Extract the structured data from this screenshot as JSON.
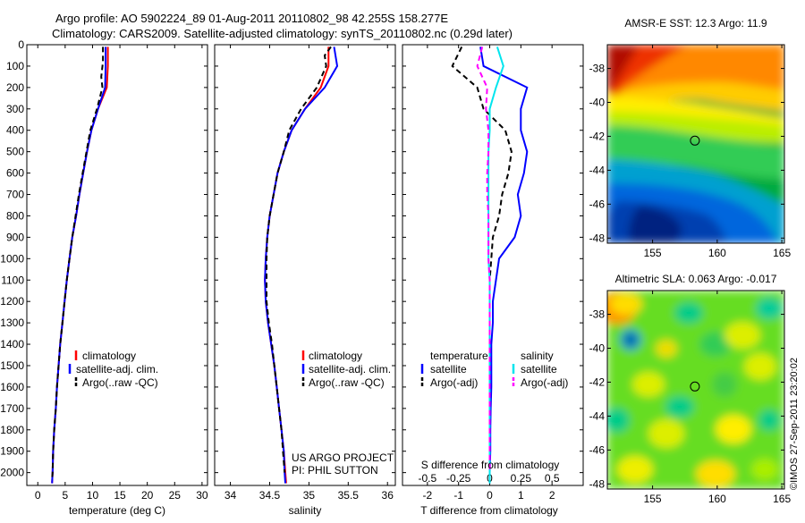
{
  "header": {
    "line1": "Argo profile: AO 5902224_89 01-Aug-2011 20110802_98 42.255S 158.277E",
    "line2": "Climatology: CARS2009. Satellite-adjusted climatology: synTS_20110802.nc (0.29d later)"
  },
  "credit": "©IMOS 27-Sep-2011 23:20:02",
  "colors": {
    "climatology": "#ff0000",
    "satellite": "#0000ff",
    "argo": "#000000",
    "salinity_satellite": "#00e5ee",
    "salinity_argo": "#ff00ff"
  },
  "chart_data": [
    {
      "type": "line",
      "id": "temperature",
      "xlabel": "temperature (deg C)",
      "ylabel": "",
      "xlim": [
        -2,
        31
      ],
      "ylim": [
        2060,
        0
      ],
      "xticks": [
        0,
        5,
        10,
        15,
        20,
        25,
        30
      ],
      "yticks": [
        0,
        100,
        200,
        300,
        400,
        500,
        600,
        700,
        800,
        900,
        1000,
        1100,
        1200,
        1300,
        1400,
        1500,
        1600,
        1700,
        1800,
        1900,
        2000
      ],
      "legend": [
        "climatology",
        "satellite-adj. clim.",
        "Argo(..raw -QC)"
      ],
      "series": [
        {
          "name": "climatology",
          "color": "#ff0000",
          "dash": "",
          "points": [
            [
              12.8,
              10
            ],
            [
              12.8,
              100
            ],
            [
              12.6,
              200
            ],
            [
              11.0,
              300
            ],
            [
              9.8,
              400
            ],
            [
              9.0,
              500
            ],
            [
              8.3,
              600
            ],
            [
              7.6,
              700
            ],
            [
              7.0,
              800
            ],
            [
              6.3,
              900
            ],
            [
              5.8,
              1000
            ],
            [
              5.3,
              1100
            ],
            [
              4.9,
              1200
            ],
            [
              4.5,
              1300
            ],
            [
              4.1,
              1400
            ],
            [
              3.8,
              1500
            ],
            [
              3.5,
              1600
            ],
            [
              3.3,
              1700
            ],
            [
              3.0,
              1800
            ],
            [
              2.8,
              1900
            ],
            [
              2.7,
              2000
            ],
            [
              2.6,
              2050
            ]
          ]
        },
        {
          "name": "satellite-adj. clim.",
          "color": "#0000ff",
          "dash": "",
          "points": [
            [
              12.4,
              10
            ],
            [
              12.4,
              100
            ],
            [
              12.3,
              200
            ],
            [
              11.0,
              300
            ],
            [
              9.8,
              400
            ],
            [
              9.0,
              500
            ],
            [
              8.3,
              600
            ],
            [
              7.6,
              700
            ],
            [
              7.0,
              800
            ],
            [
              6.3,
              900
            ],
            [
              5.8,
              1000
            ],
            [
              5.3,
              1100
            ],
            [
              4.9,
              1200
            ],
            [
              4.5,
              1300
            ],
            [
              4.1,
              1400
            ],
            [
              3.8,
              1500
            ],
            [
              3.5,
              1600
            ],
            [
              3.3,
              1700
            ],
            [
              3.0,
              1800
            ],
            [
              2.8,
              1900
            ],
            [
              2.7,
              2000
            ],
            [
              2.6,
              2050
            ]
          ]
        },
        {
          "name": "Argo(..raw -QC)",
          "color": "#000000",
          "dash": "6,4",
          "points": [
            [
              11.9,
              10
            ],
            [
              11.9,
              80
            ],
            [
              11.6,
              150
            ],
            [
              11.8,
              200
            ],
            [
              10.8,
              300
            ],
            [
              9.6,
              400
            ],
            [
              8.9,
              500
            ],
            [
              8.2,
              600
            ],
            [
              7.5,
              700
            ],
            [
              6.9,
              800
            ],
            [
              6.3,
              900
            ],
            [
              5.8,
              1000
            ],
            [
              5.3,
              1100
            ],
            [
              4.9,
              1200
            ],
            [
              4.5,
              1300
            ],
            [
              4.1,
              1400
            ],
            [
              3.8,
              1500
            ],
            [
              3.5,
              1600
            ],
            [
              3.3,
              1700
            ],
            [
              3.0,
              1800
            ],
            [
              2.8,
              1900
            ],
            [
              2.7,
              2000
            ],
            [
              2.6,
              2030
            ]
          ]
        }
      ],
      "annotations": []
    },
    {
      "type": "line",
      "id": "salinity",
      "xlabel": "salinity",
      "ylabel": "",
      "xlim": [
        33.8,
        36.1
      ],
      "ylim": [
        2060,
        0
      ],
      "xticks": [
        34,
        34.5,
        35,
        35.5,
        36
      ],
      "yticks": [],
      "legend": [
        "climatology",
        "satellite-adj. clim.",
        "Argo(..raw -QC)"
      ],
      "series": [
        {
          "name": "climatology",
          "color": "#ff0000",
          "dash": "",
          "points": [
            [
              35.25,
              10
            ],
            [
              35.25,
              100
            ],
            [
              35.15,
              200
            ],
            [
              34.95,
              300
            ],
            [
              34.78,
              400
            ],
            [
              34.68,
              500
            ],
            [
              34.6,
              600
            ],
            [
              34.55,
              700
            ],
            [
              34.5,
              800
            ],
            [
              34.47,
              900
            ],
            [
              34.45,
              1000
            ],
            [
              34.44,
              1100
            ],
            [
              34.45,
              1200
            ],
            [
              34.48,
              1300
            ],
            [
              34.52,
              1400
            ],
            [
              34.56,
              1500
            ],
            [
              34.59,
              1600
            ],
            [
              34.62,
              1700
            ],
            [
              34.65,
              1800
            ],
            [
              34.68,
              1900
            ],
            [
              34.7,
              2000
            ],
            [
              34.71,
              2050
            ]
          ]
        },
        {
          "name": "satellite-adj. clim.",
          "color": "#0000ff",
          "dash": "",
          "points": [
            [
              35.32,
              10
            ],
            [
              35.36,
              100
            ],
            [
              35.2,
              200
            ],
            [
              34.95,
              300
            ],
            [
              34.78,
              400
            ],
            [
              34.68,
              500
            ],
            [
              34.6,
              600
            ],
            [
              34.55,
              700
            ],
            [
              34.5,
              800
            ],
            [
              34.47,
              900
            ],
            [
              34.45,
              1000
            ],
            [
              34.44,
              1100
            ],
            [
              34.45,
              1200
            ],
            [
              34.48,
              1300
            ],
            [
              34.52,
              1400
            ],
            [
              34.56,
              1500
            ],
            [
              34.59,
              1600
            ],
            [
              34.62,
              1700
            ],
            [
              34.65,
              1800
            ],
            [
              34.68,
              1900
            ],
            [
              34.69,
              2000
            ],
            [
              34.7,
              2050
            ]
          ]
        },
        {
          "name": "Argo(..raw -QC)",
          "color": "#000000",
          "dash": "6,4",
          "points": [
            [
              35.28,
              10
            ],
            [
              35.2,
              50
            ],
            [
              35.22,
              100
            ],
            [
              35.1,
              200
            ],
            [
              34.9,
              300
            ],
            [
              34.75,
              400
            ],
            [
              34.68,
              500
            ],
            [
              34.6,
              600
            ],
            [
              34.55,
              700
            ],
            [
              34.5,
              800
            ],
            [
              34.47,
              900
            ],
            [
              34.46,
              1000
            ],
            [
              34.46,
              1100
            ],
            [
              34.46,
              1200
            ],
            [
              34.49,
              1300
            ],
            [
              34.53,
              1400
            ],
            [
              34.56,
              1500
            ],
            [
              34.59,
              1600
            ],
            [
              34.62,
              1700
            ],
            [
              34.65,
              1800
            ],
            [
              34.67,
              1900
            ],
            [
              34.69,
              2000
            ]
          ]
        }
      ],
      "annotations": [
        "US ARGO PROJECT",
        "PI: PHIL SUTTON"
      ]
    },
    {
      "type": "line",
      "id": "differences",
      "xlabel": "T difference from climatology",
      "xlabel2": "S difference from climatology",
      "ylabel": "",
      "xlim": [
        -2.8,
        3.0
      ],
      "xlim2": [
        -0.7,
        0.75
      ],
      "ylim": [
        2060,
        0
      ],
      "xticks": [
        -2,
        -1,
        0,
        1,
        2
      ],
      "xticks2": [
        -0.5,
        -0.25,
        0,
        0.25,
        0.5
      ],
      "yticks": [],
      "legend_headers": [
        "temperature",
        "salinity"
      ],
      "legend": [
        "satellite",
        "Argo(-adj)",
        "satellite",
        "Argo(-adj)"
      ],
      "series": [
        {
          "name": "satellite",
          "group": "temperature",
          "color": "#0000ff",
          "dash": "",
          "axis": "T",
          "points": [
            [
              -0.3,
              10
            ],
            [
              -0.2,
              100
            ],
            [
              1.2,
              200
            ],
            [
              1.0,
              300
            ],
            [
              1.0,
              400
            ],
            [
              1.2,
              500
            ],
            [
              1.1,
              600
            ],
            [
              0.9,
              700
            ],
            [
              1.0,
              800
            ],
            [
              0.8,
              900
            ],
            [
              0.3,
              1000
            ],
            [
              0.2,
              1100
            ],
            [
              0.1,
              1200
            ],
            [
              0.1,
              1300
            ],
            [
              0.05,
              1400
            ],
            [
              0.05,
              1500
            ],
            [
              0.05,
              1600
            ],
            [
              0.03,
              1700
            ],
            [
              0.02,
              1800
            ],
            [
              0.02,
              1900
            ],
            [
              0.0,
              2000
            ],
            [
              0.0,
              2050
            ]
          ]
        },
        {
          "name": "Argo(-adj)",
          "group": "temperature",
          "color": "#000000",
          "dash": "6,4",
          "axis": "T",
          "points": [
            [
              -0.9,
              10
            ],
            [
              -1.2,
              100
            ],
            [
              -0.4,
              200
            ],
            [
              -0.2,
              300
            ],
            [
              0.5,
              400
            ],
            [
              0.7,
              500
            ],
            [
              0.6,
              600
            ],
            [
              0.4,
              700
            ],
            [
              0.3,
              800
            ],
            [
              0.1,
              900
            ],
            [
              0.05,
              1000
            ],
            [
              0.0,
              1100
            ],
            [
              0.0,
              1200
            ],
            [
              0.0,
              1300
            ],
            [
              0.0,
              1400
            ],
            [
              0.0,
              1500
            ],
            [
              0.0,
              1600
            ],
            [
              0.0,
              1700
            ],
            [
              0.0,
              1800
            ],
            [
              0.0,
              1900
            ],
            [
              0.0,
              2000
            ]
          ]
        },
        {
          "name": "satellite",
          "group": "salinity",
          "color": "#00e5ee",
          "dash": "",
          "axis": "S",
          "points": [
            [
              0.06,
              10
            ],
            [
              0.11,
              100
            ],
            [
              0.05,
              200
            ],
            [
              0.0,
              300
            ],
            [
              0.0,
              400
            ],
            [
              -0.01,
              500
            ],
            [
              -0.01,
              600
            ],
            [
              -0.01,
              700
            ],
            [
              -0.01,
              800
            ],
            [
              -0.01,
              900
            ],
            [
              -0.01,
              1000
            ],
            [
              0.0,
              1100
            ],
            [
              0.0,
              1200
            ],
            [
              0.0,
              1300
            ],
            [
              0.0,
              1400
            ],
            [
              0.0,
              1500
            ],
            [
              0.0,
              1600
            ],
            [
              0.0,
              1700
            ],
            [
              0.0,
              1800
            ],
            [
              0.0,
              1900
            ],
            [
              0.0,
              2000
            ],
            [
              0.0,
              2050
            ]
          ]
        },
        {
          "name": "Argo(-adj)",
          "group": "salinity",
          "color": "#ff00ff",
          "dash": "6,4",
          "axis": "S",
          "points": [
            [
              -0.06,
              10
            ],
            [
              -0.1,
              100
            ],
            [
              -0.02,
              200
            ],
            [
              -0.03,
              300
            ],
            [
              -0.01,
              400
            ],
            [
              -0.01,
              500
            ],
            [
              -0.02,
              600
            ],
            [
              -0.02,
              700
            ],
            [
              -0.01,
              800
            ],
            [
              -0.01,
              900
            ],
            [
              -0.01,
              1000
            ],
            [
              0.0,
              1100
            ],
            [
              0.0,
              1200
            ],
            [
              0.0,
              1300
            ],
            [
              0.0,
              1400
            ],
            [
              0.0,
              1500
            ],
            [
              0.0,
              1600
            ],
            [
              0.0,
              1700
            ],
            [
              0.0,
              1800
            ],
            [
              0.0,
              1900
            ],
            [
              0.0,
              2000
            ]
          ]
        }
      ],
      "annotations": []
    },
    {
      "type": "heatmap",
      "id": "sst-map",
      "title": "AMSR-E SST: 12.3 Argo: 11.9",
      "xlim": [
        151.5,
        165.2
      ],
      "ylim": [
        -48.3,
        -36.6
      ],
      "xticks": [
        155,
        160,
        165
      ],
      "yticks": [
        -38,
        -40,
        -42,
        -44,
        -46,
        -48
      ],
      "marker": [
        158.277,
        -42.255
      ],
      "colormap": "jet"
    },
    {
      "type": "heatmap",
      "id": "sla-map",
      "title": "Altimetric SLA: 0.063 Argo: -0.017",
      "xlim": [
        151.5,
        165.2
      ],
      "ylim": [
        -48.3,
        -36.6
      ],
      "xticks": [
        155,
        160,
        165
      ],
      "yticks": [
        -38,
        -40,
        -42,
        -44,
        -46,
        -48
      ],
      "marker": [
        158.277,
        -42.255
      ],
      "colormap": "jet"
    }
  ]
}
